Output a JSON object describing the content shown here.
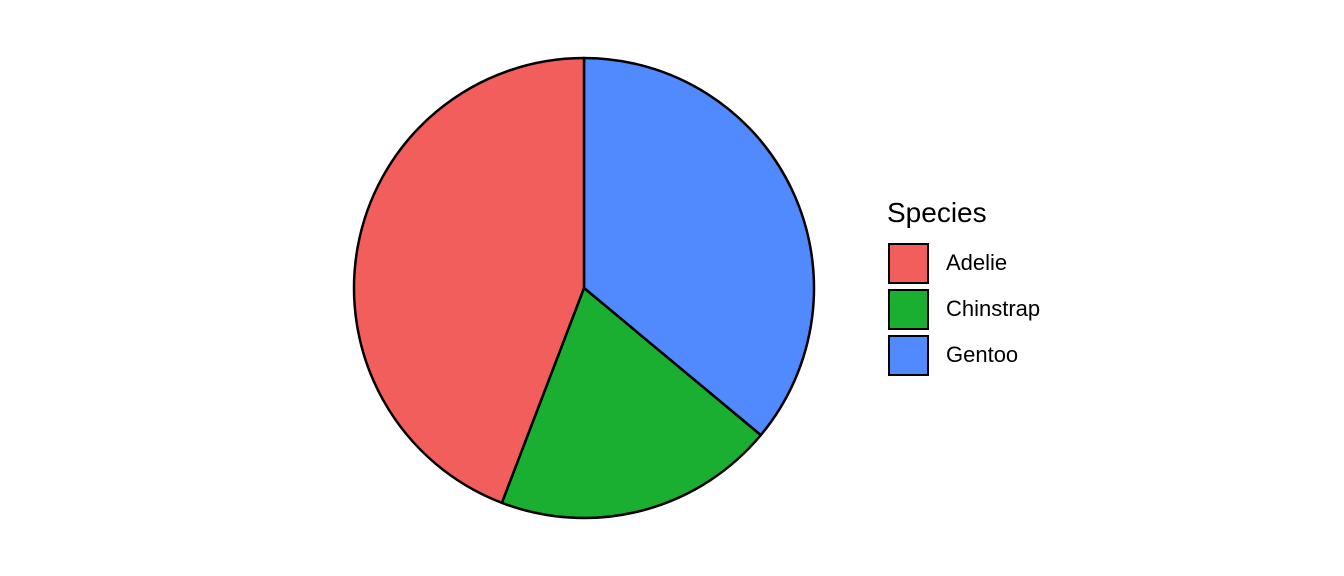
{
  "chart_data": {
    "type": "pie",
    "legend_title": "Species",
    "legend_position": "right",
    "categories": [
      "Adelie",
      "Chinstrap",
      "Gentoo"
    ],
    "values": [
      152,
      68,
      124
    ],
    "colors": [
      "#F25E5C",
      "#1AAF31",
      "#5189FF"
    ],
    "start_angle": "12 o'clock",
    "direction": "clockwise",
    "slice_order": [
      "Gentoo",
      "Chinstrap",
      "Adelie"
    ],
    "outline_color": "#000000"
  }
}
